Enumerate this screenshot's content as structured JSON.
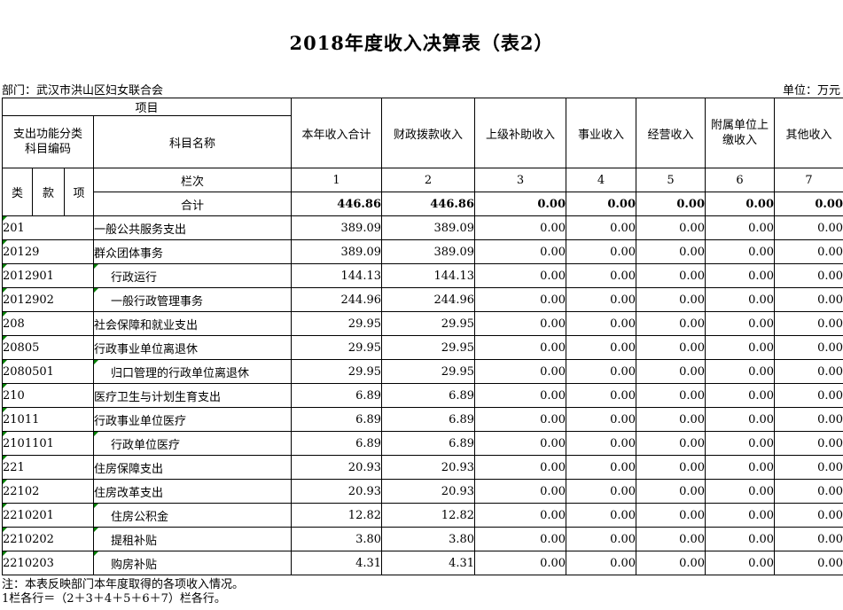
{
  "page": {
    "title": "2018年度收入决算表（表2）",
    "department_label": "部门：武汉市洪山区妇女联合会",
    "unit_label": "单位：万元"
  },
  "colors": {
    "error_indicator_green": "#008000"
  },
  "table": {
    "header": {
      "project": "项目",
      "code_group_line1": "支出功能分类",
      "code_group_line2": "科目编码",
      "subject_name": "科目名称",
      "col_class": "类",
      "col_section": "款",
      "col_item": "项",
      "row_label_columns": "栏次",
      "value_columns": [
        "本年收入合计",
        "财政拨款收入",
        "上级补助收入",
        "事业收入",
        "经营收入",
        "附属单位上缴收入",
        "其他收入"
      ],
      "column_numbers": [
        "1",
        "2",
        "3",
        "4",
        "5",
        "6",
        "7"
      ]
    },
    "total_row": {
      "label": "合计",
      "values": [
        "446.86",
        "446.86",
        "0.00",
        "0.00",
        "0.00",
        "0.00",
        "0.00"
      ]
    },
    "rows": [
      {
        "code": "201",
        "name": "一般公共服务支出",
        "indent": false,
        "code_flag": true,
        "name_flag": false,
        "values": [
          "389.09",
          "389.09",
          "0.00",
          "0.00",
          "0.00",
          "0.00",
          "0.00"
        ]
      },
      {
        "code": "20129",
        "name": "群众团体事务",
        "indent": false,
        "code_flag": true,
        "name_flag": false,
        "values": [
          "389.09",
          "389.09",
          "0.00",
          "0.00",
          "0.00",
          "0.00",
          "0.00"
        ]
      },
      {
        "code": "2012901",
        "name": "行政运行",
        "indent": true,
        "code_flag": true,
        "name_flag": true,
        "values": [
          "144.13",
          "144.13",
          "0.00",
          "0.00",
          "0.00",
          "0.00",
          "0.00"
        ]
      },
      {
        "code": "2012902",
        "name": "一般行政管理事务",
        "indent": true,
        "code_flag": true,
        "name_flag": true,
        "values": [
          "244.96",
          "244.96",
          "0.00",
          "0.00",
          "0.00",
          "0.00",
          "0.00"
        ]
      },
      {
        "code": "208",
        "name": "社会保障和就业支出",
        "indent": false,
        "code_flag": true,
        "name_flag": false,
        "values": [
          "29.95",
          "29.95",
          "0.00",
          "0.00",
          "0.00",
          "0.00",
          "0.00"
        ]
      },
      {
        "code": "20805",
        "name": "行政事业单位离退休",
        "indent": false,
        "code_flag": true,
        "name_flag": false,
        "values": [
          "29.95",
          "29.95",
          "0.00",
          "0.00",
          "0.00",
          "0.00",
          "0.00"
        ]
      },
      {
        "code": "2080501",
        "name": "归口管理的行政单位离退休",
        "indent": true,
        "code_flag": true,
        "name_flag": true,
        "values": [
          "29.95",
          "29.95",
          "0.00",
          "0.00",
          "0.00",
          "0.00",
          "0.00"
        ]
      },
      {
        "code": "210",
        "name": "医疗卫生与计划生育支出",
        "indent": false,
        "code_flag": true,
        "name_flag": false,
        "values": [
          "6.89",
          "6.89",
          "0.00",
          "0.00",
          "0.00",
          "0.00",
          "0.00"
        ]
      },
      {
        "code": "21011",
        "name": "行政事业单位医疗",
        "indent": false,
        "code_flag": true,
        "name_flag": false,
        "values": [
          "6.89",
          "6.89",
          "0.00",
          "0.00",
          "0.00",
          "0.00",
          "0.00"
        ]
      },
      {
        "code": "2101101",
        "name": "行政单位医疗",
        "indent": true,
        "code_flag": true,
        "name_flag": true,
        "values": [
          "6.89",
          "6.89",
          "0.00",
          "0.00",
          "0.00",
          "0.00",
          "0.00"
        ]
      },
      {
        "code": "221",
        "name": "住房保障支出",
        "indent": false,
        "code_flag": true,
        "name_flag": false,
        "values": [
          "20.93",
          "20.93",
          "0.00",
          "0.00",
          "0.00",
          "0.00",
          "0.00"
        ]
      },
      {
        "code": "22102",
        "name": "住房改革支出",
        "indent": false,
        "code_flag": true,
        "name_flag": false,
        "values": [
          "20.93",
          "20.93",
          "0.00",
          "0.00",
          "0.00",
          "0.00",
          "0.00"
        ]
      },
      {
        "code": "2210201",
        "name": "住房公积金",
        "indent": true,
        "code_flag": true,
        "name_flag": true,
        "values": [
          "12.82",
          "12.82",
          "0.00",
          "0.00",
          "0.00",
          "0.00",
          "0.00"
        ]
      },
      {
        "code": "2210202",
        "name": "提租补贴",
        "indent": true,
        "code_flag": true,
        "name_flag": true,
        "values": [
          "3.80",
          "3.80",
          "0.00",
          "0.00",
          "0.00",
          "0.00",
          "0.00"
        ]
      },
      {
        "code": "2210203",
        "name": "购房补贴",
        "indent": true,
        "code_flag": true,
        "name_flag": true,
        "values": [
          "4.31",
          "4.31",
          "0.00",
          "0.00",
          "0.00",
          "0.00",
          "0.00"
        ]
      }
    ],
    "notes": [
      "注：本表反映部门本年度取得的各项收入情况。",
      "1栏各行＝（2＋3＋4＋5＋6＋7）栏各行。"
    ]
  }
}
